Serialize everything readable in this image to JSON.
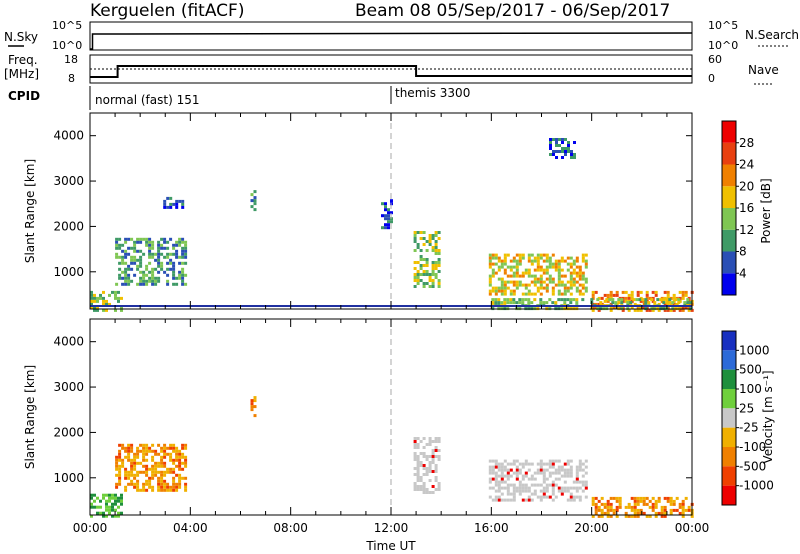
{
  "header": {
    "station": "Kerguelen (fitACF)",
    "beam_date": "Beam 08  05/Sep/2017 - 06/Sep/2017"
  },
  "top_panels": {
    "nsky_label": "N.Sky",
    "nsky_ticks": [
      "10^5",
      "10^0"
    ],
    "nsearch_label": "N.Search",
    "nsearch_ticks": [
      "10^5",
      "10^0"
    ],
    "freq_label_top": "Freq.",
    "freq_label_bottom": "[MHz]",
    "freq_ticks": [
      "18",
      "8"
    ],
    "nave_label": "Nave",
    "nave_ticks": [
      "60",
      "0"
    ],
    "cpid_label": "CPID",
    "cpid_modes": [
      {
        "name": "normal (fast) 151",
        "start_hour": 0
      },
      {
        "name": "themis 3300",
        "start_hour": 12
      }
    ]
  },
  "colors": {
    "power_scale": [
      "#0000ee",
      "#2a4fb5",
      "#3f9a66",
      "#7fc653",
      "#f0c000",
      "#f08000",
      "#e84010",
      "#ee0000"
    ],
    "velocity_scale": [
      "#1830c0",
      "#2c6ad8",
      "#1e8f3c",
      "#6fcf3c",
      "#c8c8c8",
      "#f0b000",
      "#f08000",
      "#f04000",
      "#ee0000"
    ],
    "ground_scatter": "#c8c8c8"
  },
  "chart_data": [
    {
      "type": "heatmap",
      "title": "",
      "xlabel": "",
      "ylabel": "Slant Range [km]",
      "xlim": [
        0,
        24
      ],
      "ylim": [
        180,
        4500
      ],
      "yticks": [
        1000,
        2000,
        3000,
        4000
      ],
      "colorbar_label": "Power [dB]",
      "colorbar_ticks": [
        "28",
        "24",
        "20",
        "16",
        "12",
        "8",
        "4"
      ],
      "colorbar_range": [
        0,
        32
      ],
      "regions": [
        {
          "x": [
            0,
            1.2
          ],
          "y": [
            180,
            580
          ],
          "value": 14
        },
        {
          "x": [
            1.0,
            3.8
          ],
          "y": [
            750,
            1750
          ],
          "value": 8
        },
        {
          "x": [
            2.8,
            3.7
          ],
          "y": [
            2450,
            2650
          ],
          "value": 6
        },
        {
          "x": [
            6.4,
            6.6
          ],
          "y": [
            2400,
            2800
          ],
          "value": 10
        },
        {
          "x": [
            11.6,
            12.0
          ],
          "y": [
            2000,
            2600
          ],
          "value": 6
        },
        {
          "x": [
            12.9,
            13.9
          ],
          "y": [
            700,
            1900
          ],
          "value": 14
        },
        {
          "x": [
            15.9,
            19.8
          ],
          "y": [
            500,
            1400
          ],
          "value": 18
        },
        {
          "x": [
            18.3,
            19.3
          ],
          "y": [
            3550,
            3950
          ],
          "value": 6
        },
        {
          "x": [
            20.0,
            24.0
          ],
          "y": [
            180,
            580
          ],
          "value": 20
        },
        {
          "x": [
            16.0,
            24.0
          ],
          "y": [
            180,
            420
          ],
          "value": 12
        }
      ]
    },
    {
      "type": "heatmap",
      "title": "",
      "xlabel": "Time UT",
      "ylabel": "Slant Range [km]",
      "xlim": [
        0,
        24
      ],
      "ylim": [
        180,
        4500
      ],
      "yticks": [
        1000,
        2000,
        3000,
        4000
      ],
      "xticks": [
        "00:00",
        "04:00",
        "08:00",
        "12:00",
        "16:00",
        "20:00",
        "00:00"
      ],
      "colorbar_label": "Velocity [m s⁻¹]",
      "colorbar_ticks": [
        "1000",
        "500",
        "100",
        "25",
        "-25",
        "-100",
        "-500",
        "-1000"
      ],
      "regions": [
        {
          "x": [
            0,
            1.2
          ],
          "y": [
            180,
            650
          ],
          "value": 100
        },
        {
          "x": [
            1.0,
            3.8
          ],
          "y": [
            750,
            1750
          ],
          "value": -200
        },
        {
          "x": [
            6.4,
            6.6
          ],
          "y": [
            2400,
            2800
          ],
          "value": -200
        },
        {
          "x": [
            12.9,
            13.9
          ],
          "y": [
            700,
            1900
          ],
          "value": 0
        },
        {
          "x": [
            15.9,
            19.8
          ],
          "y": [
            500,
            1400
          ],
          "value": 0
        },
        {
          "x": [
            20.0,
            24.0
          ],
          "y": [
            180,
            580
          ],
          "value": -150
        }
      ]
    }
  ]
}
